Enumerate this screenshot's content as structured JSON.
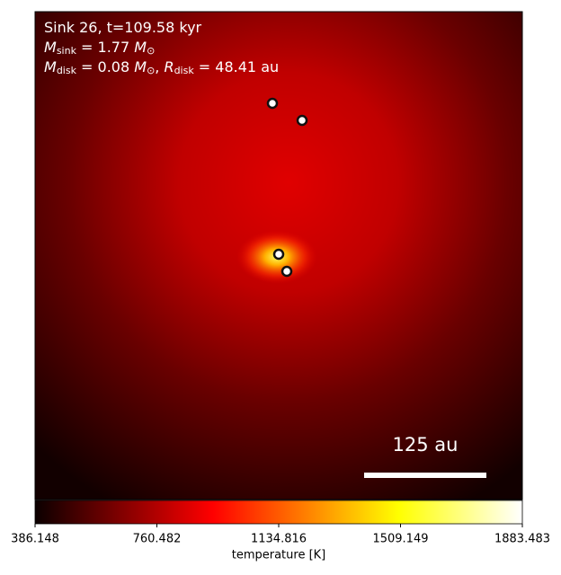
{
  "chart_data": {
    "type": "image",
    "annotations": [
      [
        "Sink 26, t=109.58 kyr"
      ],
      [
        "M",
        "sink",
        " = 1.77 ",
        "M",
        "⊙"
      ],
      [
        "M",
        "disk",
        " = 0.08 ",
        "M",
        "⊙",
        ", ",
        "R",
        "disk",
        " = 48.41 au"
      ]
    ],
    "scalebar": {
      "value": 125,
      "label": "125 au"
    },
    "colorbar": {
      "label": "temperature [K]",
      "colormap": "hot",
      "clim": [
        386.148,
        1883.483
      ],
      "ticks": [
        386.148,
        760.482,
        1134.816,
        1509.149,
        1883.483
      ]
    }
  }
}
